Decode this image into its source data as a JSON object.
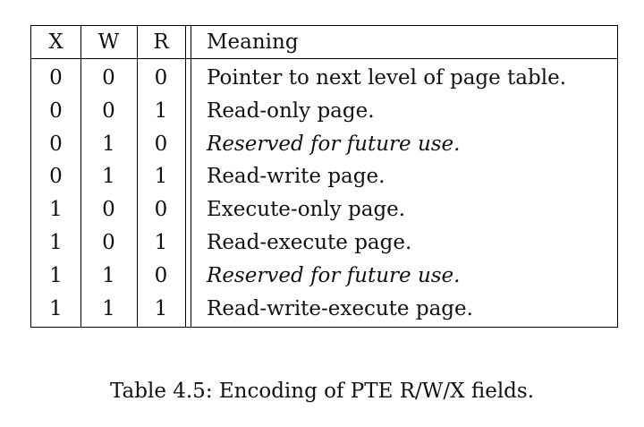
{
  "table": {
    "headers": {
      "x": "X",
      "w": "W",
      "r": "R",
      "meaning": "Meaning"
    },
    "rows": [
      {
        "x": "0",
        "w": "0",
        "r": "0",
        "meaning": "Pointer to next level of page table.",
        "italic": false
      },
      {
        "x": "0",
        "w": "0",
        "r": "1",
        "meaning": "Read-only page.",
        "italic": false
      },
      {
        "x": "0",
        "w": "1",
        "r": "0",
        "meaning": "Reserved for future use.",
        "italic": true
      },
      {
        "x": "0",
        "w": "1",
        "r": "1",
        "meaning": "Read-write page.",
        "italic": false
      },
      {
        "x": "1",
        "w": "0",
        "r": "0",
        "meaning": "Execute-only page.",
        "italic": false
      },
      {
        "x": "1",
        "w": "0",
        "r": "1",
        "meaning": "Read-execute page.",
        "italic": false
      },
      {
        "x": "1",
        "w": "1",
        "r": "0",
        "meaning": "Reserved for future use.",
        "italic": true
      },
      {
        "x": "1",
        "w": "1",
        "r": "1",
        "meaning": "Read-write-execute page.",
        "italic": false
      }
    ]
  },
  "caption": "Table 4.5: Encoding of PTE R/W/X fields."
}
